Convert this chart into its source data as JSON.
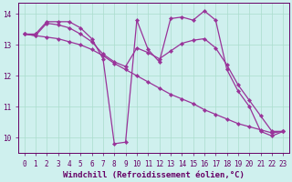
{
  "background_color": "#cff0ee",
  "grid_color": "#aaddcc",
  "line_color": "#993399",
  "marker_color": "#993399",
  "xlabel": "Windchill (Refroidissement éolien,°C)",
  "xlim": [
    -0.5,
    23.5
  ],
  "ylim": [
    9.5,
    14.35
  ],
  "yticks": [
    10,
    11,
    12,
    13,
    14
  ],
  "xticks": [
    0,
    1,
    2,
    3,
    4,
    5,
    6,
    7,
    8,
    9,
    10,
    11,
    12,
    13,
    14,
    15,
    16,
    17,
    18,
    19,
    20,
    21,
    22,
    23
  ],
  "series": [
    {
      "x": [
        0,
        1,
        2,
        3,
        4,
        5,
        6,
        7,
        8,
        9,
        10,
        11,
        12,
        13,
        14,
        15,
        16,
        17,
        18,
        19,
        20,
        21,
        22,
        23
      ],
      "y": [
        13.35,
        13.35,
        13.75,
        13.75,
        13.75,
        13.55,
        13.2,
        12.55,
        9.8,
        9.85,
        13.8,
        12.85,
        12.45,
        13.85,
        13.9,
        13.8,
        14.1,
        13.8,
        12.2,
        11.5,
        11.0,
        10.2,
        10.05,
        10.2
      ]
    },
    {
      "x": [
        0,
        1,
        2,
        3,
        4,
        5,
        6,
        7,
        8,
        9,
        10,
        11,
        12,
        13,
        14,
        15,
        16,
        17,
        18,
        19,
        20,
        21,
        22,
        23
      ],
      "y": [
        13.35,
        13.3,
        13.25,
        13.2,
        13.1,
        13.0,
        12.85,
        12.65,
        12.4,
        12.2,
        12.0,
        11.8,
        11.6,
        11.4,
        11.25,
        11.1,
        10.9,
        10.75,
        10.6,
        10.45,
        10.35,
        10.25,
        10.15,
        10.2
      ]
    },
    {
      "x": [
        0,
        1,
        2,
        3,
        4,
        5,
        6,
        7,
        8,
        9,
        10,
        11,
        12,
        13,
        14,
        15,
        16,
        17,
        18,
        19,
        20,
        21,
        22,
        23
      ],
      "y": [
        13.35,
        13.3,
        13.7,
        13.65,
        13.55,
        13.35,
        13.1,
        12.7,
        12.45,
        12.3,
        12.9,
        12.75,
        12.55,
        12.8,
        13.05,
        13.15,
        13.2,
        12.9,
        12.35,
        11.7,
        11.2,
        10.7,
        10.2,
        10.2
      ]
    }
  ],
  "tick_fontsize": 5.5,
  "label_fontsize": 6.5
}
